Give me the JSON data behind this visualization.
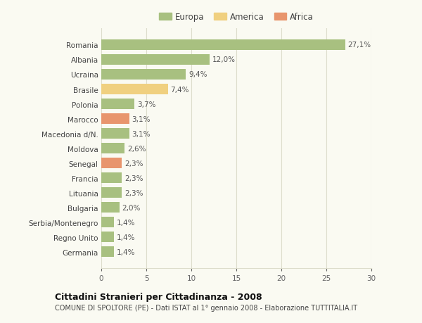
{
  "categories": [
    "Germania",
    "Regno Unito",
    "Serbia/Montenegro",
    "Bulgaria",
    "Lituania",
    "Francia",
    "Senegal",
    "Moldova",
    "Macedonia d/N.",
    "Marocco",
    "Polonia",
    "Brasile",
    "Ucraina",
    "Albania",
    "Romania"
  ],
  "values": [
    1.4,
    1.4,
    1.4,
    2.0,
    2.3,
    2.3,
    2.3,
    2.6,
    3.1,
    3.1,
    3.7,
    7.4,
    9.4,
    12.0,
    27.1
  ],
  "colors": [
    "#a8c080",
    "#a8c080",
    "#a8c080",
    "#a8c080",
    "#a8c080",
    "#a8c080",
    "#e8956d",
    "#a8c080",
    "#a8c080",
    "#e8956d",
    "#a8c080",
    "#f0d080",
    "#a8c080",
    "#a8c080",
    "#a8c080"
  ],
  "labels": [
    "1,4%",
    "1,4%",
    "1,4%",
    "2,0%",
    "2,3%",
    "2,3%",
    "2,3%",
    "2,6%",
    "3,1%",
    "3,1%",
    "3,7%",
    "7,4%",
    "9,4%",
    "12,0%",
    "27,1%"
  ],
  "legend_labels": [
    "Europa",
    "America",
    "Africa"
  ],
  "legend_colors": [
    "#a8c080",
    "#f0d080",
    "#e8956d"
  ],
  "title_main": "Cittadini Stranieri per Cittadinanza - 2008",
  "title_sub": "COMUNE DI SPOLTORE (PE) - Dati ISTAT al 1° gennaio 2008 - Elaborazione TUTTITALIA.IT",
  "xlim": [
    0,
    30
  ],
  "xticks": [
    0,
    5,
    10,
    15,
    20,
    25,
    30
  ],
  "background_color": "#fafaf2",
  "grid_color": "#ddddcc",
  "bar_height": 0.72
}
